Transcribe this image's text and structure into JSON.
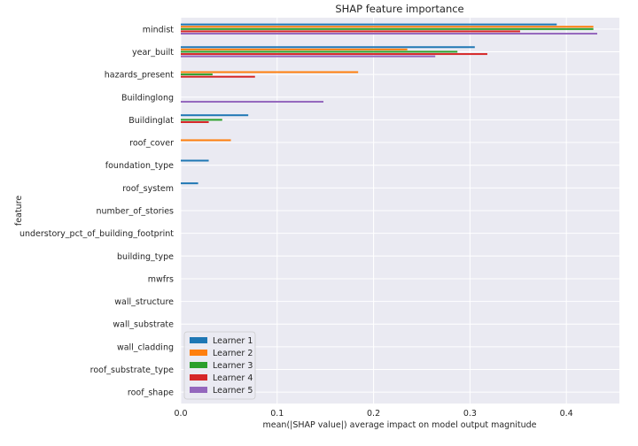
{
  "chart_data": {
    "type": "bar",
    "orientation": "horizontal",
    "title": "SHAP feature importance",
    "xlabel": "mean(|SHAP value|) average impact on model output magnitude",
    "ylabel": "feature",
    "xlim": [
      0,
      0.455
    ],
    "xticks": [
      0.0,
      0.1,
      0.2,
      0.3,
      0.4
    ],
    "xtick_labels": [
      "0.0",
      "0.1",
      "0.2",
      "0.3",
      "0.4"
    ],
    "grid": true,
    "legend_position": "lower-left",
    "categories": [
      "mindist",
      "year_built",
      "hazards_present",
      "Buildinglong",
      "Buildinglat",
      "roof_cover",
      "foundation_type",
      "roof_system",
      "number_of_stories",
      "understory_pct_of_building_footprint",
      "building_type",
      "mwfrs",
      "wall_structure",
      "wall_substrate",
      "wall_cladding",
      "roof_substrate_type",
      "roof_shape"
    ],
    "series": [
      {
        "name": "Learner 1",
        "color": "#1f77b4",
        "values": [
          0.39,
          0.305,
          0.0,
          0.0,
          0.07,
          0.0,
          0.029,
          0.018,
          0,
          0,
          0,
          0,
          0,
          0,
          0,
          0,
          0
        ]
      },
      {
        "name": "Learner 2",
        "color": "#ff7f0e",
        "values": [
          0.428,
          0.235,
          0.184,
          0.0,
          0.0,
          0.052,
          0.0,
          0.0,
          0,
          0,
          0,
          0,
          0,
          0,
          0,
          0,
          0
        ]
      },
      {
        "name": "Learner 3",
        "color": "#2ca02c",
        "values": [
          0.428,
          0.287,
          0.033,
          0.0,
          0.043,
          0.0,
          0.0,
          0.0,
          0,
          0,
          0,
          0,
          0,
          0,
          0,
          0,
          0
        ]
      },
      {
        "name": "Learner 4",
        "color": "#d62728",
        "values": [
          0.352,
          0.318,
          0.077,
          0.0,
          0.029,
          0.0,
          0.0,
          0.0,
          0,
          0,
          0,
          0,
          0,
          0,
          0,
          0,
          0
        ]
      },
      {
        "name": "Learner 5",
        "color": "#9467bd",
        "values": [
          0.432,
          0.264,
          0.0,
          0.148,
          0.0,
          0.0,
          0.0,
          0.0,
          0,
          0,
          0,
          0,
          0,
          0,
          0,
          0,
          0
        ]
      }
    ]
  }
}
